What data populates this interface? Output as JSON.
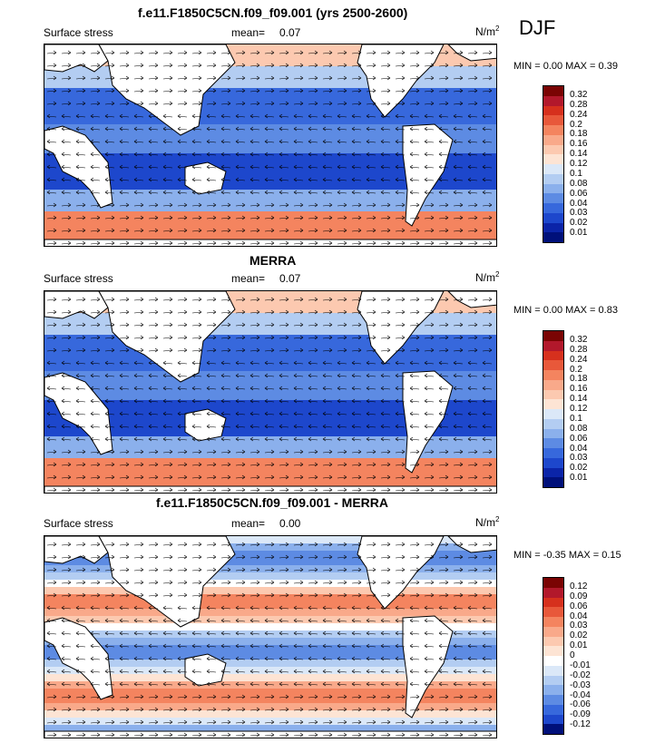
{
  "season": "DJF",
  "panels": [
    {
      "title": "f.e11.F1850C5CN.f09_f09.001 (yrs 2500-2600)",
      "variable": "Surface stress",
      "mean_label": "mean=",
      "mean_value": "0.07",
      "units": "N/m",
      "units_sup": "2",
      "minmax": "MIN =   0.00 MAX =   0.39",
      "colorbar_labels": [
        "0.32",
        "0.28",
        "0.24",
        "0.2",
        "0.18",
        "0.16",
        "0.14",
        "0.12",
        "0.1",
        "0.08",
        "0.06",
        "0.04",
        "0.03",
        "0.02",
        "0.01"
      ]
    },
    {
      "title": "MERRA",
      "variable": "Surface stress",
      "mean_label": "mean=",
      "mean_value": "0.07",
      "units": "N/m",
      "units_sup": "2",
      "minmax": "MIN =   0.00 MAX =   0.83",
      "colorbar_labels": [
        "0.32",
        "0.28",
        "0.24",
        "0.2",
        "0.18",
        "0.16",
        "0.14",
        "0.12",
        "0.1",
        "0.08",
        "0.06",
        "0.04",
        "0.03",
        "0.02",
        "0.01"
      ]
    },
    {
      "title": "f.e11.F1850C5CN.f09_f09.001 - MERRA",
      "variable": "Surface stress",
      "mean_label": "mean=",
      "mean_value": "0.00",
      "units": "N/m",
      "units_sup": "2",
      "minmax": "MIN = -0.35 MAX =   0.15",
      "colorbar_labels": [
        "0.12",
        "0.09",
        "0.06",
        "0.04",
        "0.03",
        "0.02",
        "0.01",
        "0",
        "-0.01",
        "-0.02",
        "-0.03",
        "-0.04",
        "-0.06",
        "-0.09",
        "-0.12"
      ]
    }
  ],
  "colors": {
    "sequential": [
      "#7a0403",
      "#b2182b",
      "#d6301d",
      "#e8583a",
      "#f4845f",
      "#f9a98a",
      "#fcc9b0",
      "#fde4d4",
      "#dbe8f8",
      "#b3cdf2",
      "#8bb0ec",
      "#5d8be3",
      "#3768dc",
      "#1d47cc",
      "#0b24a8",
      "#00107a"
    ],
    "diverging": [
      "#7a0403",
      "#b2182b",
      "#d6301d",
      "#e8583a",
      "#f4845f",
      "#f9a98a",
      "#fcc9b0",
      "#fde4d4",
      "#ffffff",
      "#dbe8f8",
      "#b3cdf2",
      "#8bb0ec",
      "#5d8be3",
      "#3768dc",
      "#1d47cc",
      "#00107a"
    ]
  }
}
